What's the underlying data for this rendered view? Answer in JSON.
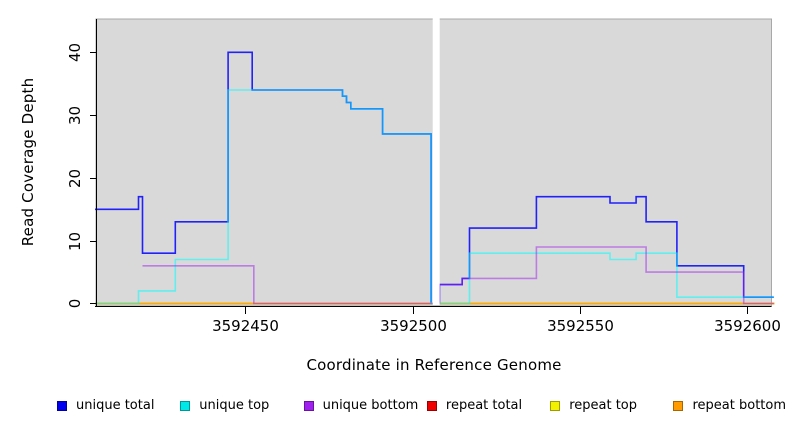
{
  "chart_data": {
    "type": "line",
    "subtype": "step",
    "title": "",
    "xlabel": "Coordinate in Reference Genome",
    "ylabel": "Read Coverage Depth",
    "xlim": [
      3592405.3,
      3592607.3
    ],
    "ylim": [
      -0.4,
      45.3
    ],
    "grid": false,
    "panel_bg": "#d9d9d9",
    "panel_border": "#a8a8a8",
    "axis_color": "#000000",
    "x_ticks": [
      {
        "value": 3592450,
        "label": "3592450"
      },
      {
        "value": 3592500,
        "label": "3592500"
      },
      {
        "value": 3592550,
        "label": "3592550"
      },
      {
        "value": 3592600,
        "label": "3592600"
      }
    ],
    "y_ticks": [
      {
        "value": 0,
        "label": "0"
      },
      {
        "value": 10,
        "label": "10"
      },
      {
        "value": 20,
        "label": "20"
      },
      {
        "value": 30,
        "label": "30"
      },
      {
        "value": 40,
        "label": "40"
      }
    ],
    "gap_band": {
      "x0": 3592506,
      "x1": 3592508.1,
      "color": "#ffffff"
    },
    "draw_order": [
      "unique total",
      "repeat total",
      "repeat top",
      "repeat bottom",
      "unique top",
      "unique bottom"
    ],
    "series": [
      {
        "name": "unique total",
        "color": "#0000ff",
        "opacity": 0.85,
        "steps": [
          [
            3592405,
            15
          ],
          [
            3592418,
            17
          ],
          [
            3592419.2,
            8
          ],
          [
            3592429,
            13
          ],
          [
            3592444.8,
            40
          ],
          [
            3592452,
            34
          ],
          [
            3592479,
            33
          ],
          [
            3592480.2,
            32
          ],
          [
            3592481.5,
            31
          ],
          [
            3592491,
            27
          ],
          [
            3592505.5,
            0
          ],
          [
            3592508,
            3
          ],
          [
            3592514.8,
            4
          ],
          [
            3592517,
            12
          ],
          [
            3592537,
            17
          ],
          [
            3592559,
            16
          ],
          [
            3592566.8,
            17
          ],
          [
            3592569.8,
            13
          ],
          [
            3592579,
            6
          ],
          [
            3592599,
            1
          ],
          [
            3592608,
            1
          ]
        ]
      },
      {
        "name": "unique top",
        "color": "#00ffff",
        "opacity": 0.55,
        "steps": [
          [
            3592405,
            0
          ],
          [
            3592418,
            2
          ],
          [
            3592429,
            7
          ],
          [
            3592444.8,
            34
          ],
          [
            3592479,
            33
          ],
          [
            3592480.2,
            32
          ],
          [
            3592481.5,
            31
          ],
          [
            3592491,
            27
          ],
          [
            3592505.5,
            0
          ],
          [
            3592517,
            8
          ],
          [
            3592559,
            7
          ],
          [
            3592566.8,
            8
          ],
          [
            3592579,
            1
          ],
          [
            3592608,
            1
          ]
        ]
      },
      {
        "name": "unique bottom",
        "color": "#a020f0",
        "opacity": 0.5,
        "steps": [
          [
            3592419.2,
            6
          ],
          [
            3592452.5,
            0
          ],
          [
            3592508,
            3
          ],
          [
            3592514.8,
            4
          ],
          [
            3592537,
            9
          ],
          [
            3592569.8,
            5
          ],
          [
            3592599,
            0
          ],
          [
            3592608,
            0
          ]
        ]
      },
      {
        "name": "repeat total",
        "color": "#ff0000",
        "opacity": 0.9,
        "steps": [
          [
            3592405,
            0
          ],
          [
            3592609,
            0
          ]
        ]
      },
      {
        "name": "repeat top",
        "color": "#ffff00",
        "opacity": 0.9,
        "steps": [
          [
            3592405,
            0
          ],
          [
            3592609,
            0
          ]
        ]
      },
      {
        "name": "repeat bottom",
        "color": "#ffa500",
        "opacity": 0.92,
        "steps": [
          [
            3592405,
            0
          ],
          [
            3592609,
            0
          ]
        ]
      }
    ],
    "legend": [
      {
        "label": "unique total",
        "color": "#0000ee"
      },
      {
        "label": "unique top",
        "color": "#00e8e8"
      },
      {
        "label": "unique bottom",
        "color": "#a020f0"
      },
      {
        "label": "repeat total",
        "color": "#ee0000"
      },
      {
        "label": "repeat top",
        "color": "#f2f200"
      },
      {
        "label": "repeat bottom",
        "color": "#ff9d00"
      }
    ],
    "legend_position": "bottom"
  }
}
